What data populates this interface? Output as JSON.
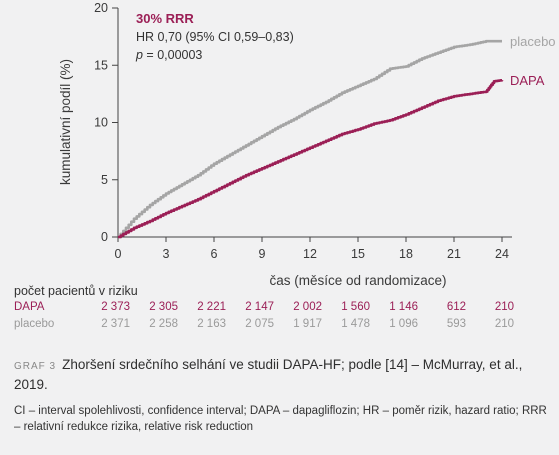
{
  "chart_data": {
    "type": "line",
    "ylabel": "kumulativní podíl (%)",
    "xlabel": "čas (měsíce od randomizace)",
    "xlim": [
      0,
      24
    ],
    "ylim": [
      0,
      20
    ],
    "x_ticks": [
      0,
      3,
      6,
      9,
      12,
      15,
      18,
      21,
      24
    ],
    "y_ticks": [
      0,
      5,
      10,
      15,
      20
    ],
    "annotation": {
      "rrr": "30% RRR",
      "hr": "HR 0,70 (95% CI 0,59–0,83)",
      "p_label": "p",
      "p_value": " = 0,00003"
    },
    "series": [
      {
        "name": "placebo",
        "color": "#a5a5a5",
        "x": [
          0,
          1,
          2,
          3,
          4,
          5,
          6,
          7,
          8,
          9,
          10,
          11,
          12,
          13,
          14,
          15,
          16,
          17,
          18,
          19,
          20,
          21,
          22,
          23,
          24
        ],
        "y": [
          0,
          1.6,
          2.8,
          3.8,
          4.6,
          5.4,
          6.4,
          7.2,
          8.0,
          8.8,
          9.6,
          10.3,
          11.1,
          11.8,
          12.6,
          13.2,
          13.8,
          14.7,
          14.9,
          15.6,
          16.1,
          16.6,
          16.8,
          17.1,
          17.1
        ]
      },
      {
        "name": "DAPA",
        "color": "#9b1f56",
        "x": [
          0,
          1,
          2,
          3,
          4,
          5,
          6,
          7,
          8,
          9,
          10,
          11,
          12,
          13,
          14,
          15,
          16,
          17,
          18,
          19,
          20,
          21,
          22,
          23,
          23.5,
          24
        ],
        "y": [
          0,
          0.8,
          1.4,
          2.1,
          2.7,
          3.3,
          4.0,
          4.7,
          5.4,
          6.0,
          6.6,
          7.2,
          7.8,
          8.4,
          9.0,
          9.4,
          9.9,
          10.2,
          10.7,
          11.3,
          11.9,
          12.3,
          12.5,
          12.7,
          13.6,
          13.7
        ]
      }
    ]
  },
  "risk_table": {
    "title": "počet pacientů v riziku",
    "rows": [
      {
        "label": "DAPA",
        "values": [
          "2 373",
          "2 305",
          "2 221",
          "2 147",
          "2 002",
          "1 560",
          "1 146",
          "612",
          "210"
        ]
      },
      {
        "label": "placebo",
        "values": [
          "2 371",
          "2 258",
          "2 163",
          "2 075",
          "1 917",
          "1 478",
          "1 096",
          "593",
          "210"
        ]
      }
    ]
  },
  "caption": {
    "id": "GRAF 3",
    "text": "Zhoršení srdečního selhání ve studii DAPA-HF; podle [14] – McMurray, et al., 2019."
  },
  "note": "CI – interval spolehlivosti, confidence interval; DAPA – dapagliflozin; HR – poměr rizik, hazard ratio; RRR – relativní redukce rizika, relative risk reduction"
}
